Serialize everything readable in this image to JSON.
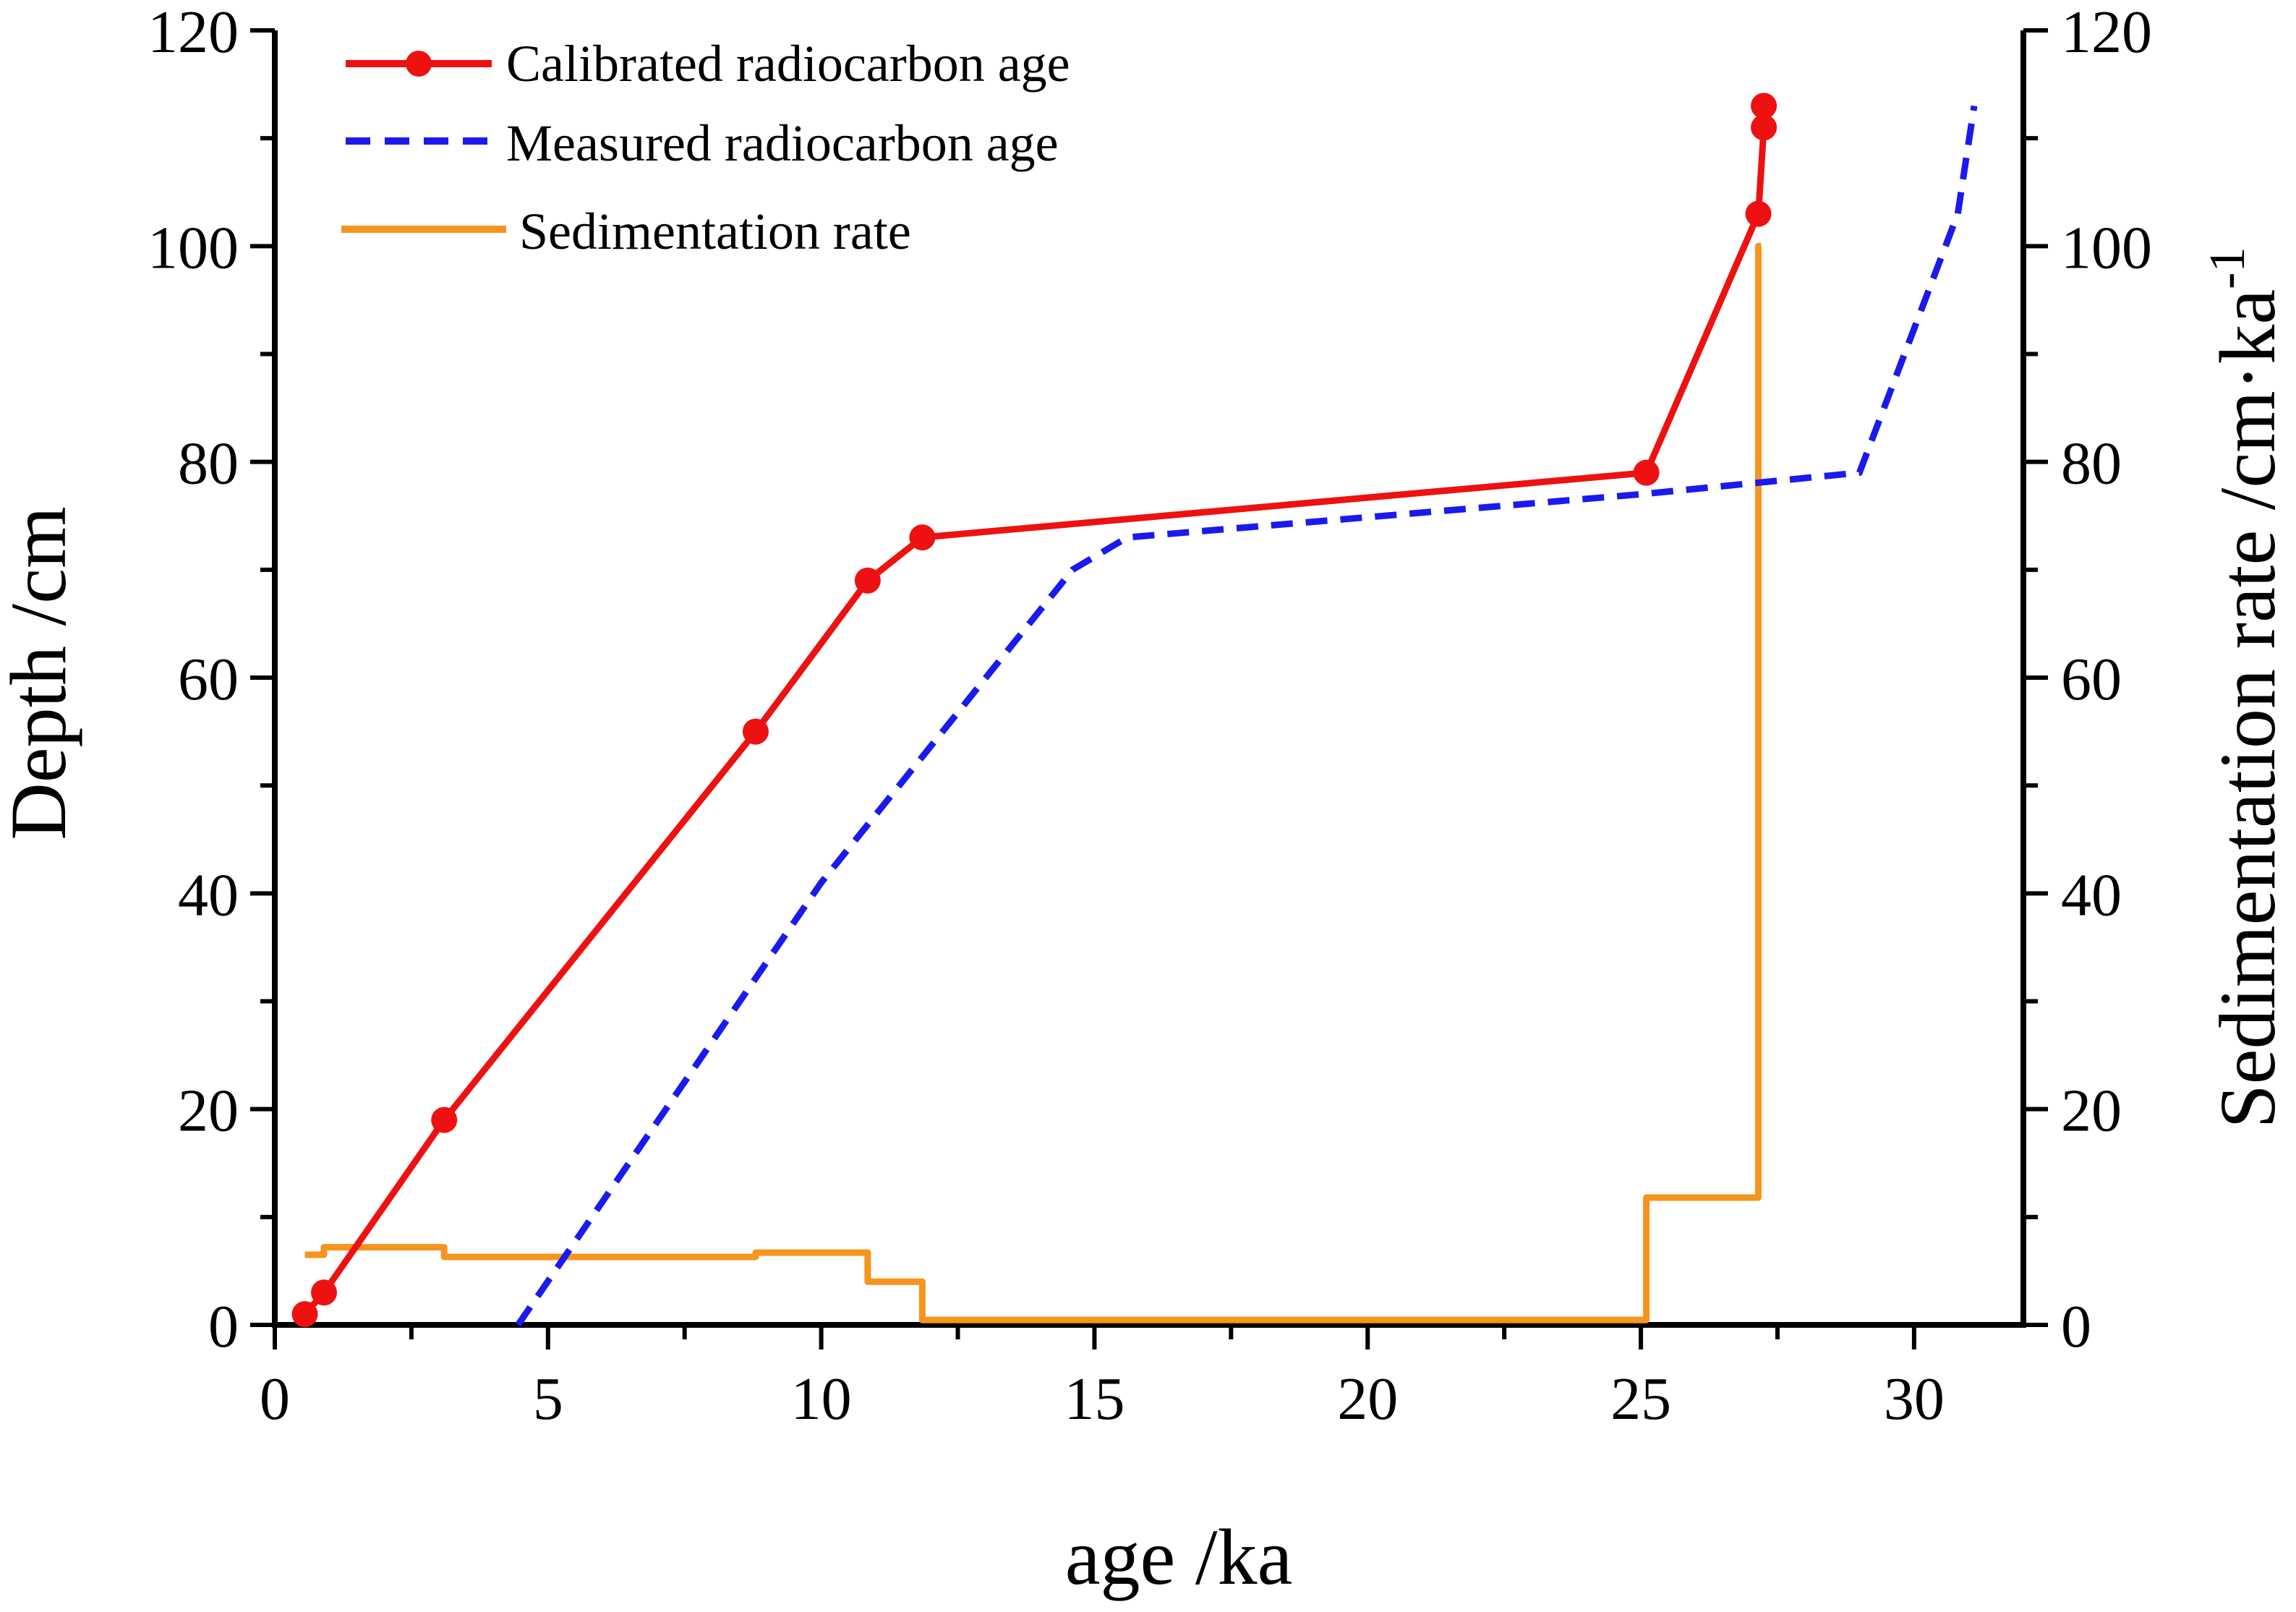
{
  "chart_data": {
    "type": "line",
    "title": "",
    "xlabel": "age /ka",
    "ylabel_left": "Depth /cm",
    "ylabel_right": "Sedimentation rate /cm·ka",
    "ylabel_right_superscript": "-1",
    "xlim": [
      0,
      32
    ],
    "ylim_left": [
      0,
      120
    ],
    "ylim_right": [
      0,
      120
    ],
    "x_ticks": [
      0,
      5,
      10,
      15,
      20,
      25,
      30
    ],
    "x_tick_labels": [
      "0",
      "5",
      "10",
      "15",
      "20",
      "25",
      "30"
    ],
    "y_ticks": [
      0,
      20,
      40,
      60,
      80,
      100,
      120
    ],
    "y_tick_labels_left": [
      "0",
      "20",
      "40",
      "60",
      "80",
      "100",
      "120"
    ],
    "y_tick_labels_right": [
      "0",
      "20",
      "40",
      "60",
      "80",
      "100",
      "120"
    ],
    "grid": false,
    "legend_position": "top-left",
    "series": [
      {
        "name": "Calibrated radiocarbon age",
        "style": "solid-markers",
        "color": "#ee1111",
        "axis": "left",
        "points": [
          [
            0.55,
            1
          ],
          [
            0.9,
            3
          ],
          [
            3.1,
            19
          ],
          [
            8.8,
            55
          ],
          [
            10.85,
            69
          ],
          [
            11.85,
            73
          ],
          [
            25.1,
            79
          ],
          [
            27.15,
            103
          ],
          [
            27.25,
            111
          ],
          [
            27.25,
            113
          ]
        ]
      },
      {
        "name": "Measured radiocarbon age",
        "style": "dashed",
        "color": "#1a1aee",
        "axis": "left",
        "points": [
          [
            4.45,
            0
          ],
          [
            10.0,
            41
          ],
          [
            14.6,
            70
          ],
          [
            15.6,
            73
          ],
          [
            25.0,
            77
          ],
          [
            29.0,
            79
          ],
          [
            30.8,
            103
          ],
          [
            31.1,
            113
          ]
        ]
      },
      {
        "name": "Sedimentation rate",
        "style": "step",
        "color": "#f7941d",
        "axis": "right",
        "points": [
          [
            0.55,
            6.5
          ],
          [
            0.9,
            6.5
          ],
          [
            0.9,
            7.2
          ],
          [
            3.1,
            7.2
          ],
          [
            3.1,
            6.3
          ],
          [
            8.8,
            6.3
          ],
          [
            8.8,
            6.7
          ],
          [
            10.85,
            6.7
          ],
          [
            10.85,
            4.0
          ],
          [
            11.85,
            4.0
          ],
          [
            11.85,
            0.45
          ],
          [
            25.1,
            0.45
          ],
          [
            25.1,
            11.8
          ],
          [
            27.15,
            11.8
          ],
          [
            27.15,
            100
          ],
          [
            27.2,
            100
          ]
        ]
      }
    ]
  }
}
